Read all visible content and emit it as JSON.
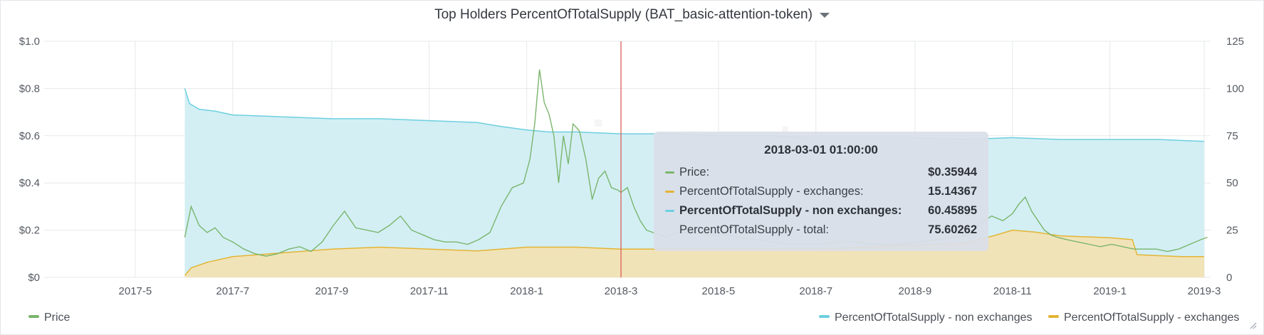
{
  "chart_title": "Top Holders PercentOfTotalSupply (BAT_basic-attention-token)",
  "watermark": "·santiment",
  "colors": {
    "price": "#7ab56c",
    "non_exchanges": "#6dcfdf",
    "non_exchanges_fill": "#d3eff4",
    "exchanges": "#e3b534",
    "exchanges_fill": "#f1e3b8",
    "crosshair": "#d9534f"
  },
  "tooltip": {
    "time": "2018-03-01 01:00:00",
    "rows": [
      {
        "label": "Price:",
        "value": "$0.35944",
        "color": "#7ab56c",
        "bold": false
      },
      {
        "label": "PercentOfTotalSupply - exchanges:",
        "value": "15.14367",
        "color": "#e3b534",
        "bold": false
      },
      {
        "label": "PercentOfTotalSupply - non exchanges:",
        "value": "60.45895",
        "color": "#6dcfdf",
        "bold": true
      },
      {
        "label": "PercentOfTotalSupply - total:",
        "value": "75.60262",
        "color": "",
        "bold": false
      }
    ]
  },
  "legend": {
    "left": [
      {
        "name": "Price",
        "color": "#7ab56c"
      }
    ],
    "right": [
      {
        "name": "PercentOfTotalSupply - non exchanges",
        "color": "#6dcfdf"
      },
      {
        "name": "PercentOfTotalSupply - exchanges",
        "color": "#e3b534"
      }
    ]
  },
  "chart_data": {
    "type": "area",
    "title": "Top Holders PercentOfTotalSupply (BAT_basic-attention-token)",
    "x_ticks": [
      "2017-5",
      "2017-7",
      "2017-9",
      "2017-11",
      "2018-1",
      "2018-3",
      "2018-5",
      "2018-7",
      "2018-9",
      "2018-11",
      "2019-1",
      "2019-3"
    ],
    "y_left": {
      "ticks": [
        "$0",
        "$0.2",
        "$0.4",
        "$0.6",
        "$0.8",
        "$1.0"
      ],
      "ylim": [
        0,
        1.0
      ]
    },
    "y_right": {
      "ticks": [
        "0",
        "25",
        "50",
        "75",
        "100",
        "125"
      ],
      "ylim": [
        0,
        125
      ]
    },
    "crosshair_date": "2018-03-01",
    "grid": true,
    "legend_position": "bottom",
    "series": [
      {
        "name": "Price",
        "axis": "left",
        "type": "line",
        "x": [
          "2017-06-01",
          "2017-06-05",
          "2017-06-10",
          "2017-06-15",
          "2017-06-20",
          "2017-06-25",
          "2017-07-01",
          "2017-07-08",
          "2017-07-15",
          "2017-07-22",
          "2017-07-29",
          "2017-08-05",
          "2017-08-12",
          "2017-08-19",
          "2017-08-26",
          "2017-09-02",
          "2017-09-09",
          "2017-09-16",
          "2017-09-23",
          "2017-09-30",
          "2017-10-07",
          "2017-10-14",
          "2017-10-21",
          "2017-10-28",
          "2017-11-04",
          "2017-11-11",
          "2017-11-18",
          "2017-11-25",
          "2017-12-02",
          "2017-12-09",
          "2017-12-16",
          "2017-12-23",
          "2017-12-30",
          "2018-01-03",
          "2018-01-06",
          "2018-01-09",
          "2018-01-12",
          "2018-01-15",
          "2018-01-18",
          "2018-01-21",
          "2018-01-24",
          "2018-01-27",
          "2018-01-30",
          "2018-02-03",
          "2018-02-07",
          "2018-02-11",
          "2018-02-15",
          "2018-02-19",
          "2018-02-23",
          "2018-02-27",
          "2018-03-01",
          "2018-03-05",
          "2018-03-09",
          "2018-03-13",
          "2018-03-17",
          "2018-03-21",
          "2018-03-25",
          "2018-03-29",
          "2018-04-05",
          "2018-04-15",
          "2018-04-25",
          "2018-05-05",
          "2018-05-15",
          "2018-05-25",
          "2018-06-05",
          "2018-06-15",
          "2018-06-25",
          "2018-07-05",
          "2018-07-15",
          "2018-07-25",
          "2018-08-05",
          "2018-08-15",
          "2018-08-25",
          "2018-09-05",
          "2018-09-15",
          "2018-09-25",
          "2018-10-05",
          "2018-10-12",
          "2018-10-19",
          "2018-10-26",
          "2018-11-01",
          "2018-11-05",
          "2018-11-09",
          "2018-11-13",
          "2018-11-17",
          "2018-11-21",
          "2018-11-25",
          "2018-11-29",
          "2018-12-05",
          "2018-12-12",
          "2018-12-19",
          "2018-12-26",
          "2019-01-02",
          "2019-01-09",
          "2019-01-16",
          "2019-01-23",
          "2019-01-30",
          "2019-02-06",
          "2019-02-13",
          "2019-02-20",
          "2019-02-27",
          "2019-03-03"
        ],
        "values": [
          0.17,
          0.3,
          0.22,
          0.19,
          0.21,
          0.17,
          0.15,
          0.12,
          0.1,
          0.09,
          0.1,
          0.12,
          0.13,
          0.11,
          0.15,
          0.22,
          0.28,
          0.21,
          0.2,
          0.19,
          0.22,
          0.26,
          0.2,
          0.18,
          0.16,
          0.15,
          0.15,
          0.14,
          0.16,
          0.19,
          0.3,
          0.38,
          0.4,
          0.5,
          0.65,
          0.88,
          0.74,
          0.69,
          0.6,
          0.4,
          0.6,
          0.48,
          0.65,
          0.62,
          0.5,
          0.33,
          0.42,
          0.45,
          0.38,
          0.37,
          0.36,
          0.38,
          0.3,
          0.24,
          0.2,
          0.19,
          0.18,
          0.17,
          0.19,
          0.19,
          0.18,
          0.18,
          0.17,
          0.16,
          0.15,
          0.14,
          0.14,
          0.14,
          0.15,
          0.15,
          0.14,
          0.14,
          0.14,
          0.15,
          0.16,
          0.17,
          0.18,
          0.23,
          0.26,
          0.24,
          0.27,
          0.31,
          0.34,
          0.28,
          0.24,
          0.2,
          0.18,
          0.17,
          0.16,
          0.15,
          0.14,
          0.13,
          0.14,
          0.13,
          0.12,
          0.12,
          0.12,
          0.11,
          0.12,
          0.14,
          0.16,
          0.17
        ]
      },
      {
        "name": "PercentOfTotalSupply - non exchanges",
        "axis": "right",
        "type": "area",
        "x": [
          "2017-06-01",
          "2017-06-04",
          "2017-06-10",
          "2017-06-20",
          "2017-07-01",
          "2017-08-01",
          "2017-09-01",
          "2017-10-01",
          "2017-11-01",
          "2017-12-01",
          "2017-12-15",
          "2018-01-01",
          "2018-01-15",
          "2018-02-01",
          "2018-03-01",
          "2018-04-01",
          "2018-05-01",
          "2018-06-01",
          "2018-07-01",
          "2018-08-01",
          "2018-09-01",
          "2018-10-01",
          "2018-11-01",
          "2018-12-01",
          "2019-01-01",
          "2019-02-01",
          "2019-03-01"
        ],
        "values": [
          100,
          92,
          89,
          88,
          86,
          85,
          84,
          84,
          83,
          82,
          80,
          78,
          77,
          77,
          76,
          76,
          75,
          75,
          74,
          74,
          74,
          73,
          74,
          73,
          73,
          73,
          72
        ]
      },
      {
        "name": "PercentOfTotalSupply - exchanges",
        "axis": "right",
        "type": "area",
        "x": [
          "2017-06-01",
          "2017-06-05",
          "2017-06-15",
          "2017-07-01",
          "2017-08-01",
          "2017-09-01",
          "2017-10-01",
          "2017-11-01",
          "2017-12-01",
          "2018-01-01",
          "2018-02-01",
          "2018-03-01",
          "2018-04-01",
          "2018-05-01",
          "2018-06-01",
          "2018-07-01",
          "2018-08-01",
          "2018-09-01",
          "2018-10-01",
          "2018-10-20",
          "2018-11-01",
          "2018-11-15",
          "2018-12-01",
          "2019-01-01",
          "2019-01-15",
          "2019-01-18",
          "2019-02-15",
          "2019-03-01"
        ],
        "values": [
          1,
          5,
          8,
          11,
          13,
          15,
          16,
          15,
          14,
          16,
          16,
          15,
          15,
          15,
          15,
          15,
          16,
          17,
          18,
          22,
          25,
          24,
          22,
          21,
          20,
          12,
          11,
          11
        ]
      }
    ]
  }
}
